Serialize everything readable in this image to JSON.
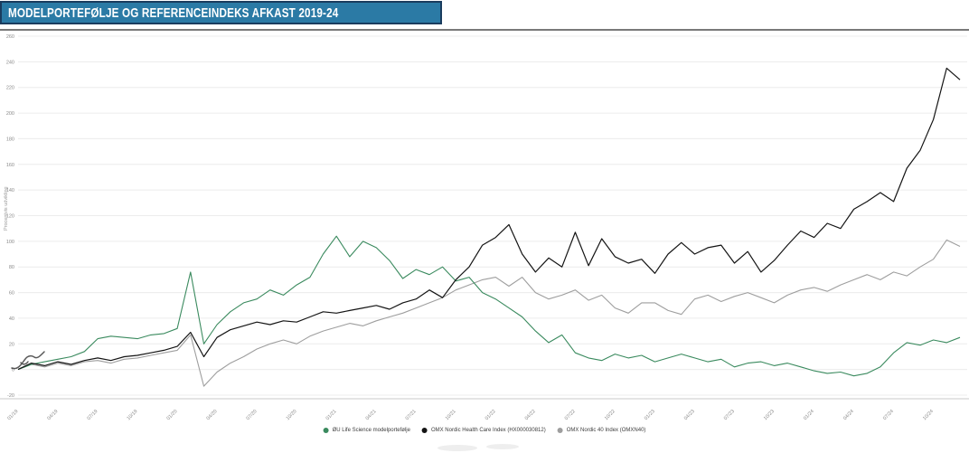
{
  "header": {
    "title": "MODELPORTEFØLJE OG REFERENCEINDEKS AFKAST 2019-24",
    "bar_color": "#2b7aa5",
    "border_color": "#1a3c5e"
  },
  "chart": {
    "y_axis_title": "Procentvis udvikling",
    "grid_color": "#ececec",
    "axis_line_color": "#c9c9c9",
    "top_rule_color": "#4d4d4d",
    "tick_label_color": "#8a8a8a"
  },
  "chart_data": {
    "type": "line",
    "title": "Modelportefølje og referenceindeks afkast 2019-24",
    "xlabel": "",
    "ylabel": "Procentvis udvikling",
    "ylim": [
      -20,
      260
    ],
    "y_ticks": [
      260,
      240,
      220,
      200,
      180,
      160,
      140,
      120,
      100,
      80,
      60,
      40,
      20,
      0,
      -20
    ],
    "x_start": "01/2019",
    "x_step": "1 month",
    "x_tick_labels": [
      "01/19",
      "04/19",
      "07/19",
      "10/19",
      "01/20",
      "04/20",
      "07/20",
      "10/20",
      "01/21",
      "04/21",
      "07/21",
      "10/21",
      "01/22",
      "04/22",
      "07/22",
      "10/22",
      "01/23",
      "04/23",
      "07/23",
      "10/23",
      "01/24",
      "04/24",
      "07/24",
      "10/24"
    ],
    "grid": true,
    "legend_position": "bottom",
    "series": [
      {
        "name": "OMX Nordic 40 Index (OMXN40)",
        "color": "#9e9e9e",
        "values": [
          0,
          4,
          2,
          5,
          3,
          6,
          7,
          5,
          8,
          9,
          11,
          13,
          15,
          27,
          -13,
          -2,
          5,
          10,
          16,
          20,
          23,
          20,
          26,
          30,
          33,
          36,
          34,
          38,
          41,
          44,
          48,
          52,
          56,
          62,
          66,
          70,
          72,
          65,
          72,
          60,
          55,
          58,
          62,
          54,
          58,
          48,
          44,
          52,
          52,
          46,
          43,
          55,
          58,
          53,
          57,
          60,
          56,
          52,
          58,
          62,
          64,
          61,
          66,
          70,
          74,
          70,
          76,
          73,
          80,
          86,
          101,
          96
        ]
      },
      {
        "name": "ØU Life Science modelportefølje",
        "color": "#3a8a5e",
        "values": [
          0,
          4,
          6,
          8,
          10,
          14,
          24,
          26,
          25,
          24,
          27,
          28,
          32,
          76,
          20,
          35,
          45,
          52,
          55,
          62,
          58,
          66,
          72,
          90,
          104,
          88,
          100,
          95,
          85,
          71,
          78,
          74,
          80,
          69,
          72,
          60,
          55,
          48,
          41,
          30,
          21,
          27,
          13,
          9,
          7,
          12,
          9,
          11,
          6,
          9,
          12,
          9,
          6,
          8,
          2,
          5,
          6,
          3,
          5,
          2,
          -1,
          -3,
          -2,
          -5,
          -3,
          2,
          13,
          21,
          19,
          23,
          21,
          25
        ]
      },
      {
        "name": "OMX Nordic Health Care Index (HX000030812)",
        "color": "#141414",
        "values": [
          0,
          5,
          3,
          6,
          4,
          7,
          9,
          7,
          10,
          11,
          13,
          15,
          18,
          29,
          10,
          25,
          31,
          34,
          37,
          35,
          38,
          37,
          41,
          45,
          44,
          46,
          48,
          50,
          47,
          52,
          55,
          62,
          56,
          70,
          80,
          97,
          103,
          113,
          90,
          76,
          87,
          80,
          107,
          81,
          102,
          88,
          83,
          86,
          75,
          90,
          99,
          90,
          95,
          97,
          83,
          92,
          76,
          85,
          97,
          108,
          103,
          114,
          110,
          125,
          131,
          138,
          131,
          157,
          171,
          195,
          235,
          226
        ]
      }
    ]
  },
  "legend": {
    "items": [
      {
        "label": "ØU Life Science modelportefølje"
      },
      {
        "label": "OMX Nordic Health Care Index (HX000030812)"
      },
      {
        "label": "OMX Nordic 40 Index (OMXN40)"
      }
    ]
  }
}
